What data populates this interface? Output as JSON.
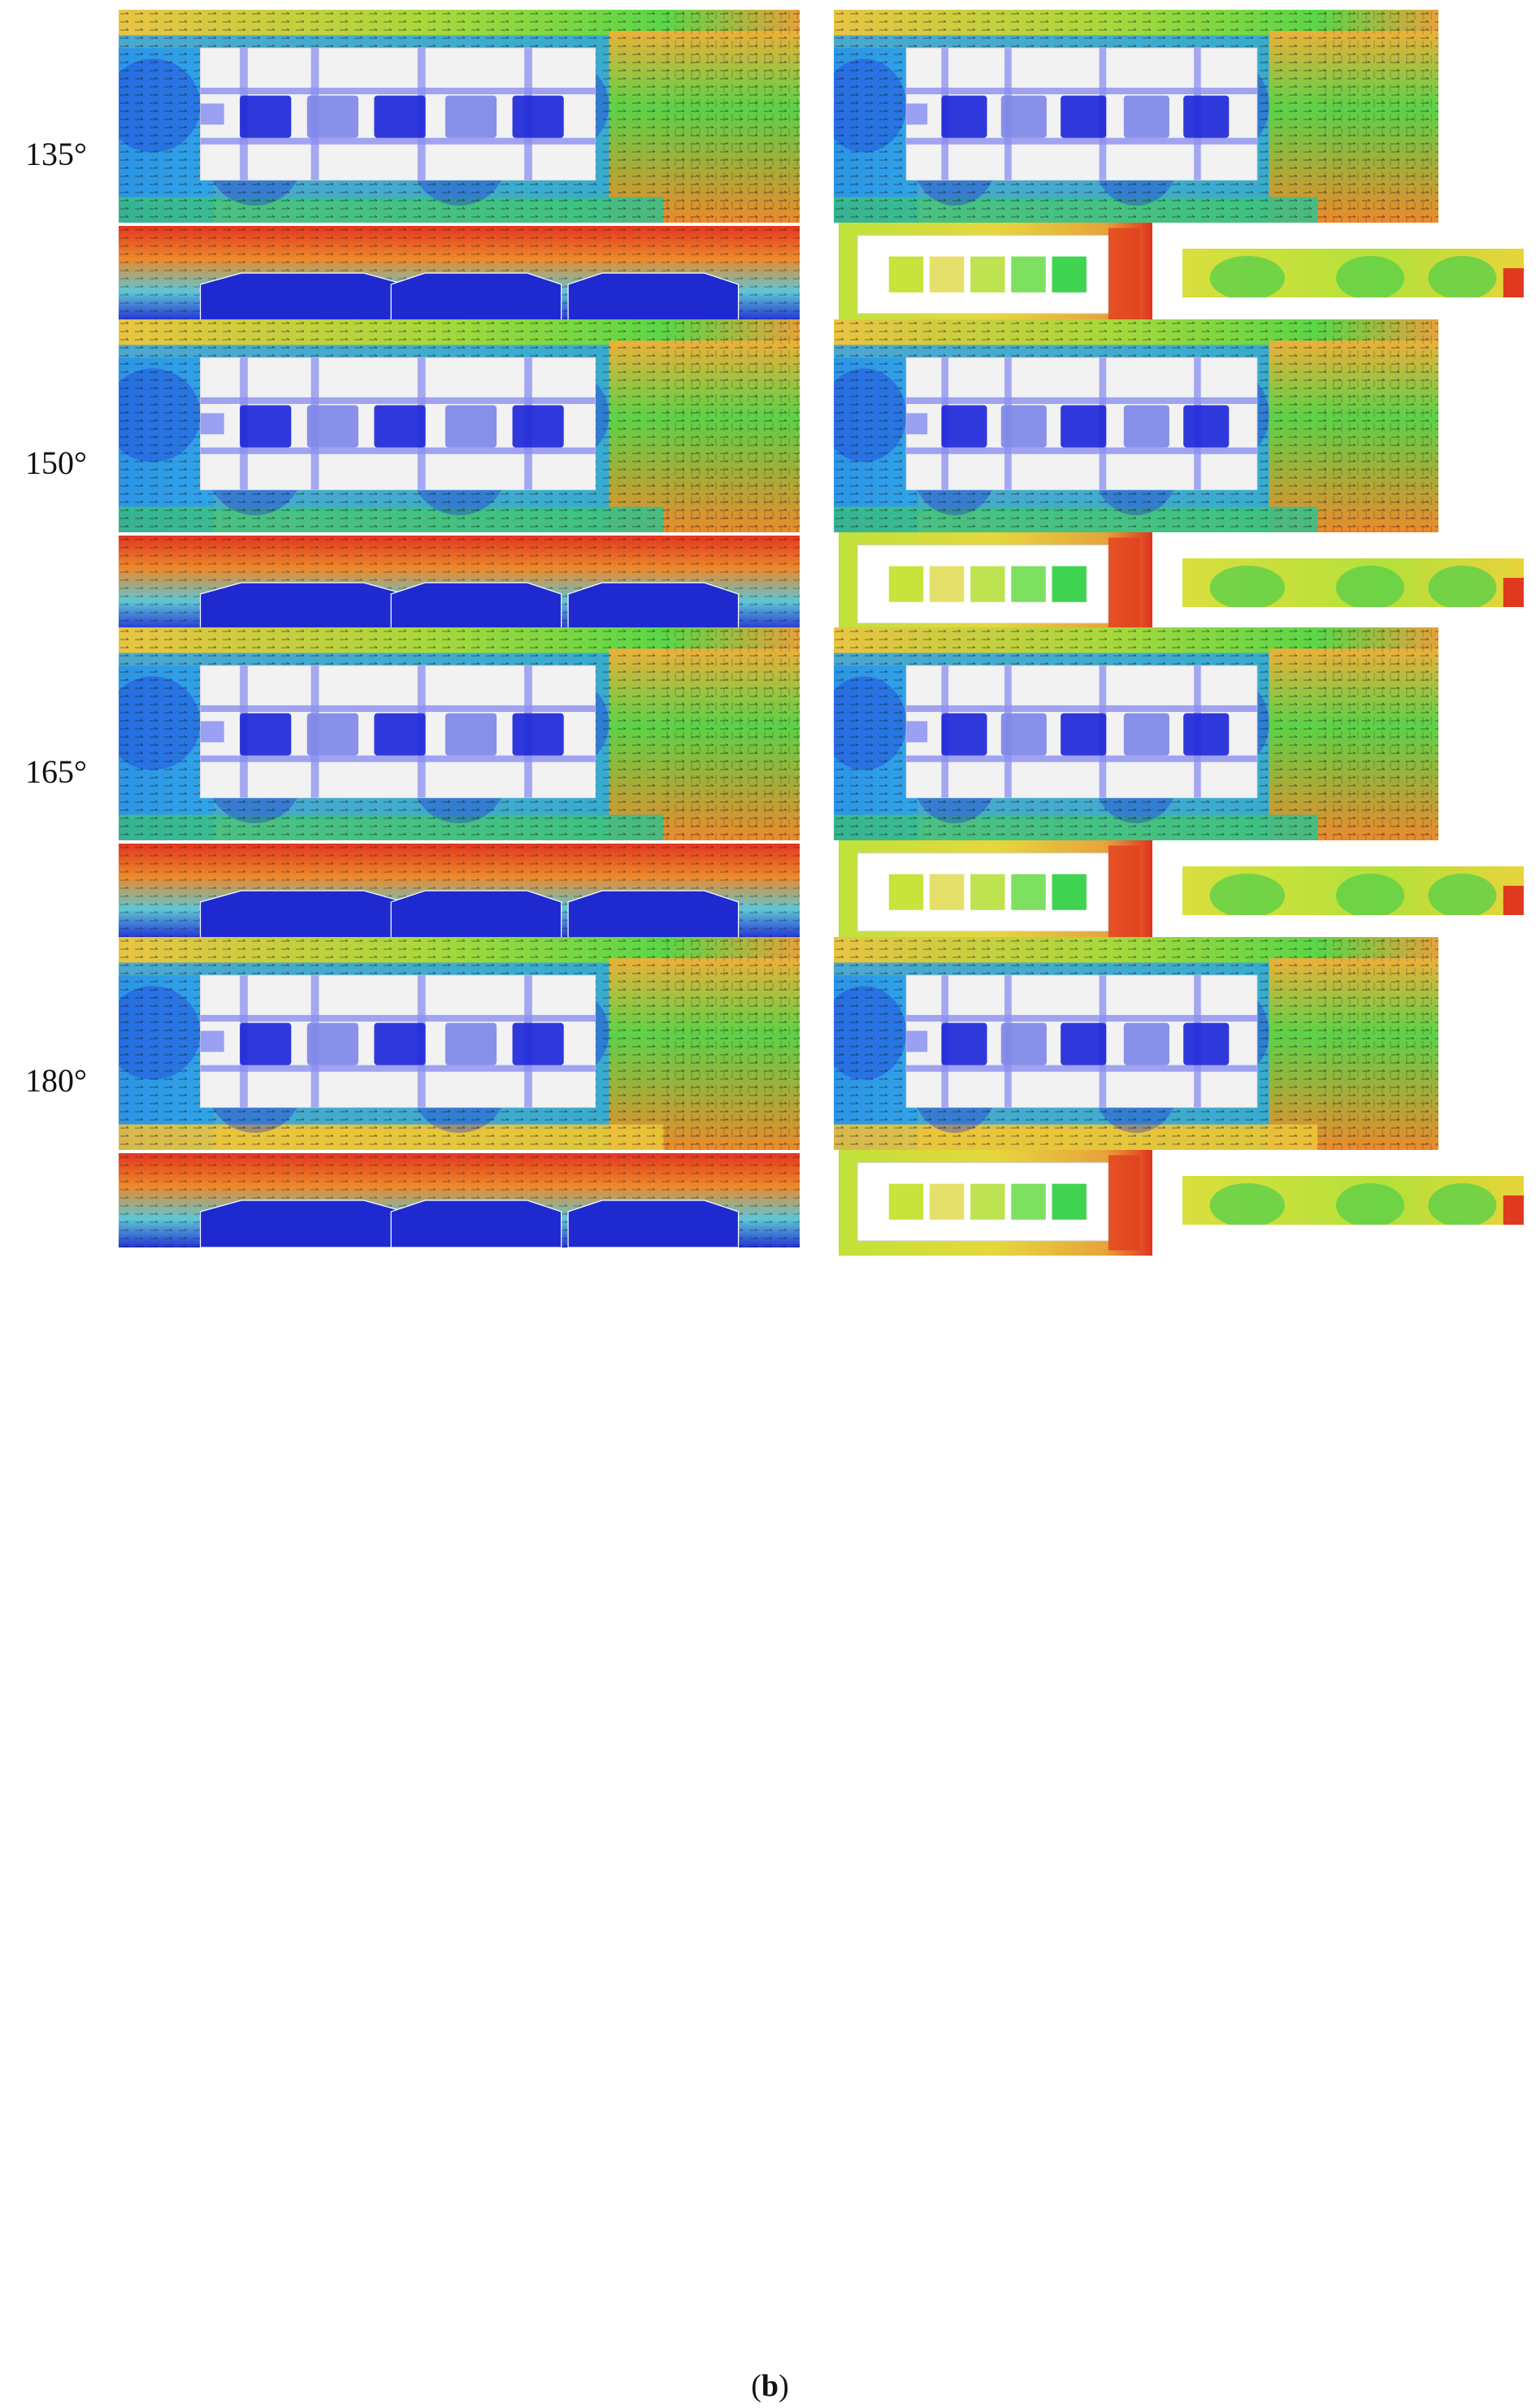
{
  "figure": {
    "caption_open": "(",
    "caption_letter": "b",
    "caption_close": ")",
    "rows": [
      {
        "angle": "135°"
      },
      {
        "angle": "150°"
      },
      {
        "angle": "165°"
      },
      {
        "angle": "180°"
      }
    ]
  },
  "colors": {
    "contour_low": "#1e28d8",
    "contour_mid": "#2fa3e8",
    "contour_green": "#3fd24a",
    "contour_yellow": "#e8d640",
    "contour_orange": "#ee8a2a",
    "contour_high": "#e0301e",
    "building_fill": "#f2f2f2",
    "corridor_fill": "#8a8ef0",
    "vectors": "#111111"
  }
}
